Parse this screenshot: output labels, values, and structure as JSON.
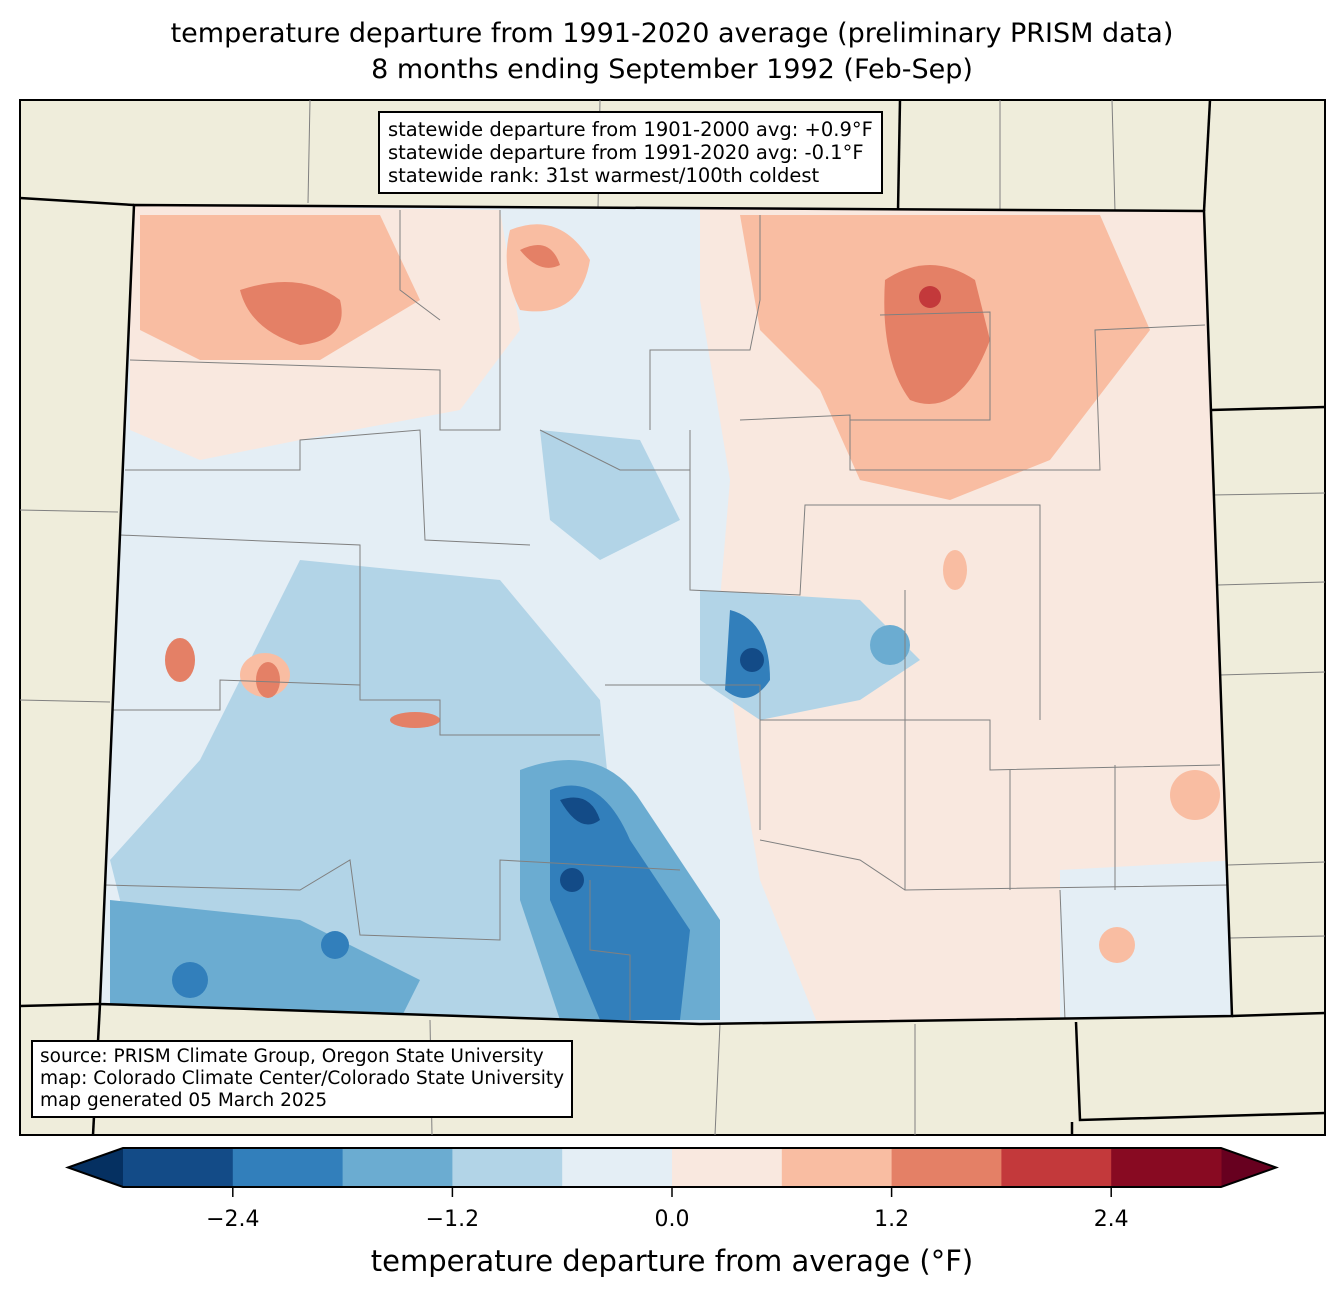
{
  "title": {
    "line1": "temperature departure from 1991-2020 average (preliminary PRISM data)",
    "line2": "8 months ending September 1992 (Feb-Sep)"
  },
  "stats_box": {
    "line1": "statewide departure from 1901-2000 avg: +0.9°F",
    "line2": "statewide departure from 1991-2020 avg: -0.1°F",
    "line3": "statewide rank: 31st warmest/100th coldest"
  },
  "source_box": {
    "line1": "source: PRISM Climate Group, Oregon State University",
    "line2": "map: Colorado Climate Center/Colorado State University",
    "line3": "map generated 05 March 2025"
  },
  "colorbar": {
    "label": "temperature departure from average (°F)",
    "levels": [
      -3.0,
      -2.4,
      -1.8,
      -1.2,
      -0.6,
      0.0,
      0.6,
      1.2,
      1.8,
      2.4,
      3.0
    ],
    "colors": [
      "#134b87",
      "#327fbb",
      "#6bacd1",
      "#b2d4e7",
      "#e4eef5",
      "#f9e8df",
      "#f9bda2",
      "#e48066",
      "#c3393b",
      "#880a22"
    ],
    "extend_min_color": "#053061",
    "extend_max_color": "#67001f",
    "ticks": [
      "−2.4",
      "−1.2",
      "0.0",
      "1.2",
      "2.4"
    ],
    "tick_values": [
      -2.4,
      -1.2,
      0.0,
      1.2,
      2.4
    ]
  },
  "map_colors": {
    "land": "#efeddb",
    "county_lines": "#808080",
    "state_lines": "#000000"
  }
}
